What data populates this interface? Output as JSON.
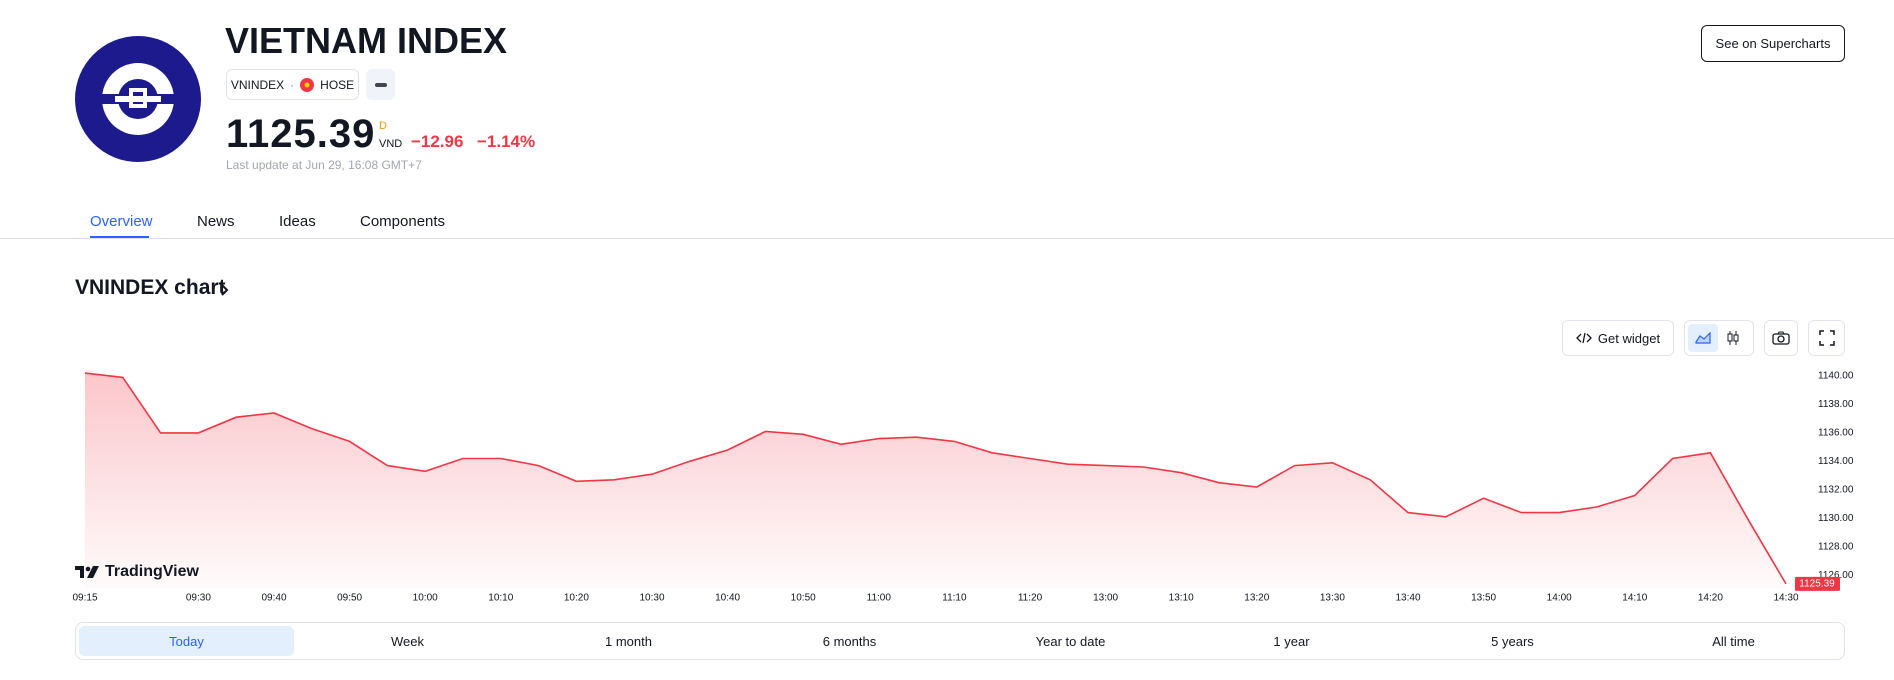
{
  "header": {
    "title": "VIETNAM INDEX",
    "symbol": "VNINDEX",
    "exchange": "HOSE",
    "price": "1125.39",
    "price_flag": "D",
    "currency": "VND",
    "change": "−12.96",
    "change_percent": "−1.14%",
    "last_update": "Last update at Jun 29, 16:08 GMT+7",
    "supercharts_button": "See on Supercharts"
  },
  "tabs": [
    "Overview",
    "News",
    "Ideas",
    "Components"
  ],
  "chart_heading": "VNINDEX chart",
  "toolbar": {
    "get_widget": "Get widget"
  },
  "watermark": "TradingView",
  "chart_data": {
    "type": "area",
    "color": "#f23645",
    "categories": [
      "09:15",
      null,
      null,
      "09:30",
      null,
      "09:40",
      null,
      "09:50",
      null,
      "10:00",
      null,
      "10:10",
      null,
      "10:20",
      null,
      "10:30",
      null,
      "10:40",
      null,
      "10:50",
      null,
      "11:00",
      null,
      "11:10",
      null,
      "11:20",
      null,
      "13:00",
      null,
      "13:10",
      null,
      "13:20",
      null,
      "13:30",
      null,
      "13:40",
      null,
      "13:50",
      null,
      "14:00",
      null,
      "14:10",
      null,
      "14:20",
      null,
      "14:30"
    ],
    "values": [
      1140.2,
      1139.9,
      1136.0,
      1136.0,
      1137.1,
      1137.4,
      1136.3,
      1135.4,
      1133.7,
      1133.3,
      1134.2,
      1134.2,
      1133.7,
      1132.6,
      1132.7,
      1133.1,
      1134.0,
      1134.8,
      1136.1,
      1135.9,
      1135.2,
      1135.6,
      1135.7,
      1135.4,
      1134.6,
      1134.2,
      1133.8,
      1133.7,
      1133.6,
      1133.2,
      1132.5,
      1132.2,
      1133.7,
      1133.9,
      1132.7,
      1130.4,
      1130.1,
      1131.4,
      1130.4,
      1130.4,
      1130.8,
      1131.6,
      1134.2,
      1134.6,
      1129.9,
      1125.39
    ],
    "ylim": [
      1125.1,
      1140.7
    ],
    "yticks": [
      {
        "value": 1126,
        "label": "1126.00"
      },
      {
        "value": 1128,
        "label": "1128.00"
      },
      {
        "value": 1130,
        "label": "1130.00"
      },
      {
        "value": 1132,
        "label": "1132.00"
      },
      {
        "value": 1134,
        "label": "1134.00"
      },
      {
        "value": 1136,
        "label": "1136.00"
      },
      {
        "value": 1138,
        "label": "1138.00"
      },
      {
        "value": 1140,
        "label": "1140.00"
      }
    ]
  },
  "ranges": [
    "Today",
    "Week",
    "1 month",
    "6 months",
    "Year to date",
    "1 year",
    "5 years",
    "All time"
  ]
}
